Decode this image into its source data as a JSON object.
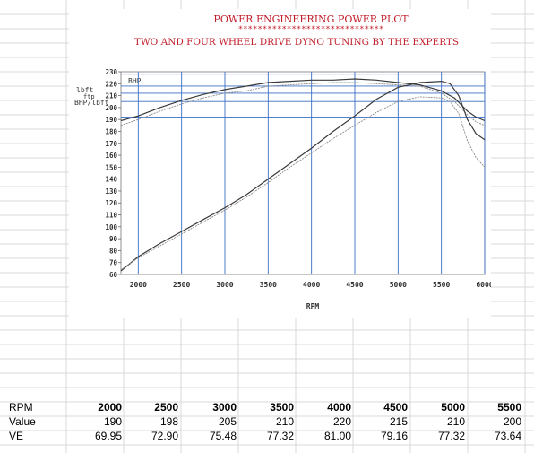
{
  "chart_data": {
    "type": "line",
    "title": "POWER ENGINEERING POWER PLOT",
    "title_stars": "******************************",
    "subtitle": "TWO AND FOUR WHEEL DRIVE DYNO TUNING BY THE EXPERTS",
    "xlabel": "RPM",
    "ylabel_left": "lbft",
    "ylabel_left2": "ftp",
    "ylabel_bhp": "BHP/lbft",
    "bhp_label": "BHP",
    "xlim": [
      1800,
      6000
    ],
    "ylim": [
      60,
      230
    ],
    "x_ticks": [
      "2000",
      "2500",
      "3000",
      "3500",
      "4000",
      "4500",
      "5000",
      "5500",
      "6000"
    ],
    "y_ticks": [
      "230",
      "220",
      "210",
      "200",
      "190",
      "180",
      "170",
      "160",
      "150",
      "140",
      "130",
      "120",
      "110",
      "100",
      "90",
      "80",
      "70",
      "60"
    ],
    "grid": true,
    "colors": {
      "dark": "#3a3a3a",
      "light": "#8a8a8a",
      "grid": "#3b6fc4",
      "title": "#c21e2a"
    },
    "series": [
      {
        "style": "dark",
        "x": [
          1800,
          2000,
          2250,
          2500,
          2750,
          3000,
          3250,
          3500,
          3750,
          4000,
          4250,
          4500,
          4750,
          5000,
          5250,
          5500,
          5650,
          5800,
          5900,
          6000
        ],
        "y": [
          189,
          193,
          200,
          206,
          211,
          215,
          218,
          221,
          222,
          223,
          223,
          224,
          223,
          221,
          219,
          214,
          208,
          197,
          192,
          189
        ]
      },
      {
        "style": "light",
        "x": [
          1800,
          2000,
          2250,
          2500,
          2750,
          3000,
          3250,
          3500,
          3750,
          4000,
          4250,
          4500,
          4750,
          5000,
          5250,
          5500,
          5650,
          5800,
          5900,
          6000
        ],
        "y": [
          185,
          190,
          197,
          203,
          208,
          212,
          214,
          218,
          219,
          220,
          221,
          221,
          220,
          219,
          218,
          212,
          205,
          194,
          188,
          185
        ]
      },
      {
        "style": "dark",
        "x": [
          1800,
          2000,
          2250,
          2500,
          2750,
          3000,
          3250,
          3500,
          3750,
          4000,
          4250,
          4500,
          4750,
          5000,
          5250,
          5500,
          5600,
          5700,
          5800,
          5900,
          6000
        ],
        "y": [
          63,
          75,
          86,
          96,
          106,
          116,
          127,
          140,
          153,
          166,
          180,
          193,
          207,
          217,
          221,
          222,
          220,
          210,
          190,
          178,
          173
        ]
      },
      {
        "style": "light",
        "x": [
          1800,
          2000,
          2250,
          2500,
          2750,
          3000,
          3250,
          3500,
          3750,
          4000,
          4250,
          4500,
          4750,
          5000,
          5250,
          5500,
          5600,
          5700,
          5800,
          5900,
          6000
        ],
        "y": [
          64,
          74,
          84,
          94,
          104,
          114,
          125,
          137,
          150,
          162,
          174,
          185,
          196,
          205,
          209,
          208,
          205,
          195,
          172,
          158,
          150
        ]
      }
    ]
  },
  "table": {
    "row_labels": [
      "RPM",
      "Value",
      "VE"
    ],
    "rpm": [
      "2000",
      "2500",
      "3000",
      "3500",
      "4000",
      "4500",
      "5000",
      "5500"
    ],
    "value": [
      "190",
      "198",
      "205",
      "210",
      "220",
      "215",
      "210",
      "200"
    ],
    "ve": [
      "69.95",
      "72.90",
      "75.48",
      "77.32",
      "81.00",
      "79.16",
      "77.32",
      "73.64"
    ]
  }
}
